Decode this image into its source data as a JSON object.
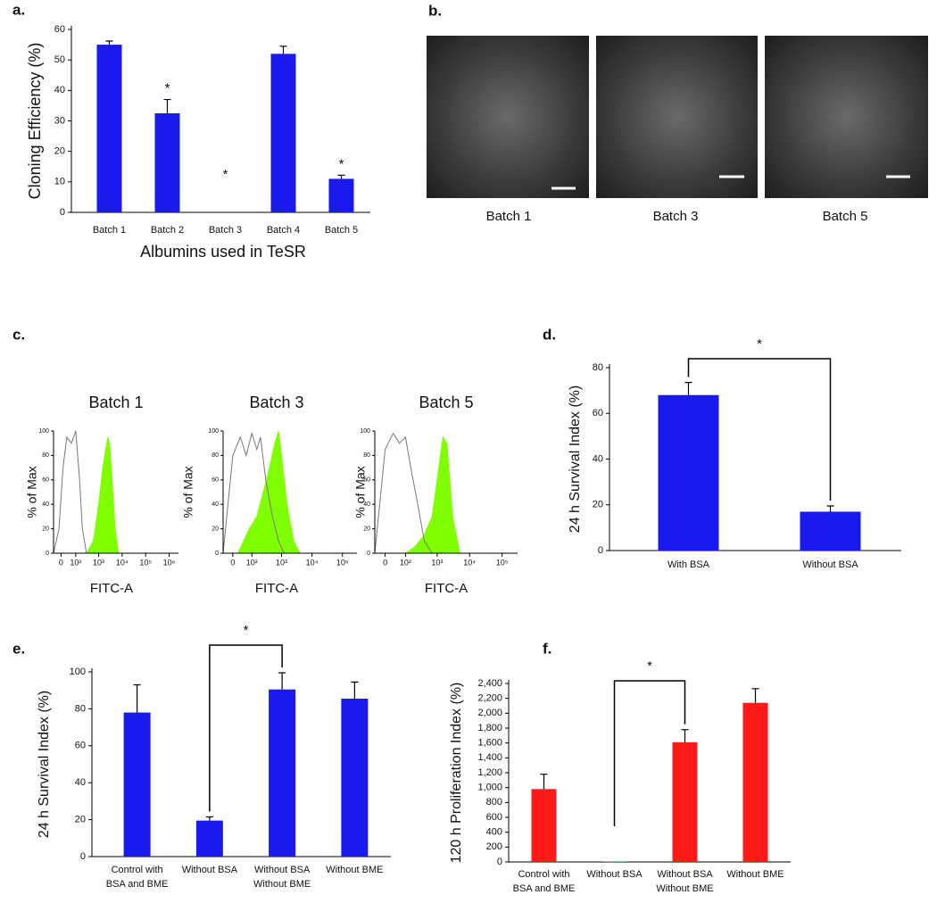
{
  "images": {
    "panel_label": "b.",
    "captions": [
      "Batch 1",
      "Batch 3",
      "Batch 5"
    ]
  },
  "chart_data": [
    {
      "type": "bar",
      "panel_label": "a.",
      "y_label": "Cloning Efficiency (%)",
      "x_label": "Albumins used in TeSR",
      "categories": [
        "Batch 1",
        "Batch 2",
        "Batch 3",
        "Batch 4",
        "Batch 5"
      ],
      "values": [
        55,
        32.5,
        0,
        52,
        11
      ],
      "errors": [
        1.2,
        4.5,
        null,
        2.5,
        1.2
      ],
      "significance": [
        null,
        "*",
        "*",
        null,
        "*"
      ],
      "color": "#1a1aee",
      "ylim": [
        0,
        60
      ],
      "yticks": [
        0,
        10,
        20,
        30,
        40,
        50,
        60
      ]
    },
    {
      "type": "flow",
      "panel_label": "c.",
      "title": "Batch 1",
      "x_label": "FITC-A",
      "y_label": "% of Max",
      "xscale": "biexponential",
      "xlim": [
        -40,
        2500000
      ],
      "ylim": [
        0,
        100
      ],
      "yticks": [
        0,
        20,
        40,
        60,
        80,
        100
      ],
      "xticks": [
        {
          "value": 0,
          "label": "0"
        },
        {
          "value": 100,
          "label": "10²"
        },
        {
          "value": 1000,
          "label": "10³"
        },
        {
          "value": 10000,
          "label": "10⁴"
        },
        {
          "value": 100000,
          "label": "10⁵"
        },
        {
          "value": 1000000,
          "label": "10⁶"
        }
      ],
      "series": [
        {
          "color": "#7fff00",
          "fill": true,
          "x": [
            300,
            600,
            1000,
            1500,
            2000,
            2500,
            3000,
            4000,
            5000,
            7000
          ],
          "values": [
            0,
            10,
            40,
            70,
            85,
            95,
            88,
            50,
            20,
            0
          ]
        },
        {
          "color": "#777777",
          "fill": false,
          "x": [
            -40,
            -10,
            10,
            30,
            60,
            100,
            150,
            200,
            300
          ],
          "values": [
            0,
            20,
            70,
            95,
            90,
            100,
            60,
            20,
            0
          ]
        }
      ]
    },
    {
      "type": "flow",
      "title": "Batch 3",
      "x_label": "FITC-A",
      "y_label": "% of Max",
      "xscale": "biexponential",
      "xlim": [
        -40,
        300000
      ],
      "ylim": [
        0,
        100
      ],
      "yticks": [
        0,
        20,
        40,
        60,
        80,
        100
      ],
      "xticks": [
        {
          "value": 0,
          "label": "0"
        },
        {
          "value": 100,
          "label": "10²"
        },
        {
          "value": 1000,
          "label": "10³"
        },
        {
          "value": 10000,
          "label": "10⁴"
        },
        {
          "value": 100000,
          "label": "10⁵"
        }
      ],
      "series": [
        {
          "color": "#7fff00",
          "fill": true,
          "x": [
            20,
            80,
            150,
            250,
            400,
            600,
            800,
            1000,
            1500,
            2500,
            4000
          ],
          "values": [
            0,
            20,
            30,
            50,
            70,
            90,
            100,
            80,
            40,
            10,
            0
          ]
        },
        {
          "color": "#777777",
          "fill": false,
          "x": [
            -40,
            0,
            30,
            60,
            100,
            150,
            200,
            300,
            500,
            800,
            1200
          ],
          "values": [
            0,
            80,
            95,
            80,
            98,
            85,
            95,
            60,
            30,
            10,
            0
          ]
        }
      ]
    },
    {
      "type": "flow",
      "title": "Batch 5",
      "x_label": "FITC-A",
      "y_label": "% of Max",
      "xscale": "biexponential",
      "xlim": [
        -40,
        300000
      ],
      "ylim": [
        0,
        100
      ],
      "yticks": [
        0,
        20,
        40,
        60,
        80,
        100
      ],
      "xticks": [
        {
          "value": 0,
          "label": "0"
        },
        {
          "value": 100,
          "label": "10²"
        },
        {
          "value": 1000,
          "label": "10³"
        },
        {
          "value": 10000,
          "label": "10⁴"
        },
        {
          "value": 100000,
          "label": "10⁵"
        }
      ],
      "series": [
        {
          "color": "#7fff00",
          "fill": true,
          "x": [
            100,
            200,
            400,
            700,
            1000,
            1500,
            2000,
            3000,
            5000
          ],
          "values": [
            0,
            5,
            15,
            30,
            60,
            95,
            90,
            30,
            0
          ]
        },
        {
          "color": "#777777",
          "fill": false,
          "x": [
            -40,
            0,
            30,
            60,
            100,
            150,
            250,
            400,
            700
          ],
          "values": [
            0,
            85,
            98,
            90,
            95,
            70,
            40,
            10,
            0
          ]
        }
      ]
    },
    {
      "type": "bar",
      "panel_label": "d.",
      "y_label": "24 h Survival Index (%)",
      "categories": [
        "With BSA",
        "Without BSA"
      ],
      "values": [
        68,
        17
      ],
      "errors": [
        5.5,
        2.5
      ],
      "color": "#1a1aee",
      "comparisons": [
        {
          "from": 0,
          "to": 1,
          "label": "*"
        }
      ],
      "ylim": [
        0,
        80
      ],
      "yticks": [
        0,
        20,
        40,
        60,
        80
      ]
    },
    {
      "type": "bar",
      "panel_label": "e.",
      "y_label": "24 h Survival Index (%)",
      "categories": [
        [
          "Control with",
          "BSA and BME"
        ],
        [
          "Without BSA"
        ],
        [
          "Without BSA",
          "Without BME"
        ],
        [
          "Without BME"
        ]
      ],
      "values": [
        78,
        19.5,
        90.5,
        85.5
      ],
      "errors": [
        15,
        2,
        9,
        9
      ],
      "color": "#1a1aee",
      "comparisons": [
        {
          "from": 1,
          "to": 2,
          "label": "*"
        }
      ],
      "ylim": [
        0,
        100
      ],
      "yticks": [
        0,
        20,
        40,
        60,
        80,
        100
      ]
    },
    {
      "type": "bar",
      "panel_label": "f.",
      "y_label": "120 h Proliferation Index (%)",
      "categories": [
        [
          "Control with",
          "BSA and BME"
        ],
        [
          "Without BSA"
        ],
        [
          "Without BSA",
          "Without BME"
        ],
        [
          "Without BME"
        ]
      ],
      "values": [
        980,
        5,
        1610,
        2140
      ],
      "errors": [
        200,
        null,
        170,
        190
      ],
      "color": "#ff1a1a",
      "comparisons": [
        {
          "from": 1,
          "to": 2,
          "label": "*"
        }
      ],
      "ylim": [
        0,
        2400
      ],
      "yticks": [
        0,
        200,
        400,
        600,
        800,
        {
          "value": 1000,
          "label": "1,000"
        },
        {
          "value": 1200,
          "label": "1,200"
        },
        {
          "value": 1400,
          "label": "1,400"
        },
        {
          "value": 1600,
          "label": "1,600"
        },
        {
          "value": 1800,
          "label": "1,800"
        },
        {
          "value": 2000,
          "label": "2,000"
        },
        {
          "value": 2200,
          "label": "2,200"
        },
        {
          "value": 2400,
          "label": "2,400"
        }
      ]
    }
  ]
}
